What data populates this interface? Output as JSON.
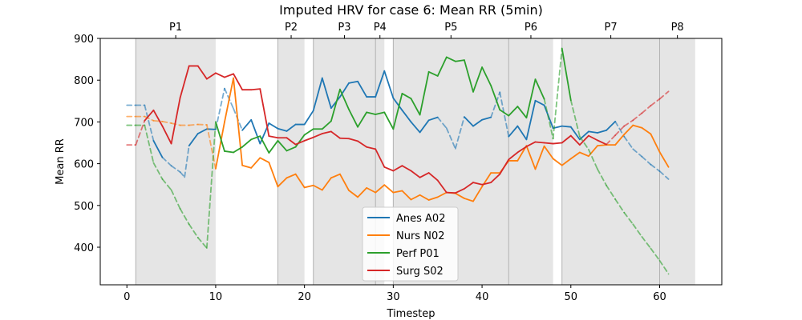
{
  "chart_data": {
    "type": "line",
    "title": "Imputed HRV for case 6: Mean RR (5min)",
    "xlabel": "Timestep",
    "ylabel": "Mean RR",
    "xlim": [
      -3,
      67
    ],
    "ylim": [
      310,
      900
    ],
    "xticks": [
      0,
      10,
      20,
      30,
      40,
      50,
      60
    ],
    "yticks": [
      400,
      500,
      600,
      700,
      800,
      900
    ],
    "grid": false,
    "legend_position": "lower-center",
    "phases": [
      {
        "label": "P1",
        "start": 1,
        "end": 10
      },
      {
        "label": "P2",
        "start": 17,
        "end": 20
      },
      {
        "label": "P3",
        "start": 21,
        "end": 28
      },
      {
        "label": "P4",
        "start": 28,
        "end": 29
      },
      {
        "label": "P5",
        "start": 30,
        "end": 43
      },
      {
        "label": "P6",
        "start": 43,
        "end": 48
      },
      {
        "label": "P7",
        "start": 49,
        "end": 60
      },
      {
        "label": "P8",
        "start": 60,
        "end": 64
      }
    ],
    "series": [
      {
        "name": "Anes A02",
        "color": "#1f77b4",
        "points": [
          [
            0,
            740,
            0
          ],
          [
            1,
            740,
            0
          ],
          [
            2,
            740,
            0
          ],
          [
            3,
            655,
            1
          ],
          [
            4,
            615,
            1
          ],
          [
            5,
            595,
            0
          ],
          [
            6,
            580,
            0
          ],
          [
            6.5,
            568,
            0
          ],
          [
            7,
            643,
            1
          ],
          [
            8,
            672,
            1
          ],
          [
            9,
            683,
            1
          ],
          [
            10,
            682,
            1
          ],
          [
            11,
            780,
            0
          ],
          [
            12,
            732,
            0
          ],
          [
            13,
            680,
            1
          ],
          [
            14,
            705,
            1
          ],
          [
            15,
            648,
            1
          ],
          [
            16,
            697,
            1
          ],
          [
            17,
            684,
            1
          ],
          [
            18,
            678,
            1
          ],
          [
            19,
            694,
            1
          ],
          [
            20,
            694,
            1
          ],
          [
            21,
            727,
            1
          ],
          [
            22,
            805,
            1
          ],
          [
            23,
            733,
            1
          ],
          [
            24,
            760,
            1
          ],
          [
            25,
            793,
            1
          ],
          [
            26,
            797,
            1
          ],
          [
            27,
            760,
            1
          ],
          [
            28,
            760,
            1
          ],
          [
            29,
            822,
            1
          ],
          [
            30,
            757,
            1
          ],
          [
            31,
            728,
            1
          ],
          [
            32,
            700,
            1
          ],
          [
            33,
            675,
            1
          ],
          [
            34,
            704,
            1
          ],
          [
            35,
            711,
            1
          ],
          [
            36,
            685,
            0
          ],
          [
            37,
            636,
            0
          ],
          [
            38,
            712,
            1
          ],
          [
            39,
            690,
            1
          ],
          [
            40,
            705,
            1
          ],
          [
            41,
            711,
            1
          ],
          [
            42,
            771,
            0
          ],
          [
            43,
            665,
            1
          ],
          [
            44,
            690,
            1
          ],
          [
            45,
            658,
            1
          ],
          [
            46,
            751,
            1
          ],
          [
            47,
            740,
            1
          ],
          [
            48,
            685,
            1
          ],
          [
            49,
            690,
            1
          ],
          [
            50,
            688,
            1
          ],
          [
            51,
            658,
            1
          ],
          [
            52,
            677,
            1
          ],
          [
            53,
            674,
            1
          ],
          [
            54,
            680,
            1
          ],
          [
            55,
            701,
            1
          ],
          [
            56,
            665,
            0
          ],
          [
            57,
            635,
            0
          ],
          [
            58,
            617,
            0
          ],
          [
            59,
            598,
            0
          ],
          [
            60,
            582,
            0
          ],
          [
            61,
            563,
            0
          ]
        ]
      },
      {
        "name": "Nurs N02",
        "color": "#ff7f0e",
        "points": [
          [
            0,
            713,
            0
          ],
          [
            1,
            713,
            0
          ],
          [
            2,
            713,
            0
          ],
          [
            3,
            703,
            0
          ],
          [
            4,
            701,
            0
          ],
          [
            5,
            697,
            0
          ],
          [
            6,
            692,
            0
          ],
          [
            7,
            692,
            0
          ],
          [
            8,
            694,
            0
          ],
          [
            9,
            693,
            0
          ],
          [
            10,
            588,
            1
          ],
          [
            11,
            700,
            1
          ],
          [
            12,
            805,
            1
          ],
          [
            13,
            596,
            1
          ],
          [
            14,
            590,
            1
          ],
          [
            15,
            614,
            1
          ],
          [
            16,
            603,
            1
          ],
          [
            17,
            545,
            1
          ],
          [
            18,
            566,
            1
          ],
          [
            19,
            575,
            1
          ],
          [
            20,
            543,
            1
          ],
          [
            21,
            548,
            1
          ],
          [
            22,
            537,
            1
          ],
          [
            23,
            566,
            1
          ],
          [
            24,
            575,
            1
          ],
          [
            25,
            536,
            1
          ],
          [
            26,
            520,
            1
          ],
          [
            27,
            542,
            1
          ],
          [
            28,
            531,
            1
          ],
          [
            29,
            549,
            1
          ],
          [
            30,
            531,
            1
          ],
          [
            31,
            535,
            1
          ],
          [
            32,
            514,
            1
          ],
          [
            33,
            525,
            1
          ],
          [
            34,
            513,
            1
          ],
          [
            35,
            520,
            1
          ],
          [
            36,
            531,
            1
          ],
          [
            37,
            529,
            1
          ],
          [
            38,
            517,
            1
          ],
          [
            39,
            510,
            1
          ],
          [
            40,
            545,
            1
          ],
          [
            41,
            578,
            1
          ],
          [
            42,
            578,
            1
          ],
          [
            43,
            607,
            1
          ],
          [
            44,
            607,
            1
          ],
          [
            45,
            643,
            1
          ],
          [
            46,
            587,
            1
          ],
          [
            47,
            642,
            1
          ],
          [
            48,
            612,
            1
          ],
          [
            49,
            596,
            1
          ],
          [
            50,
            612,
            1
          ],
          [
            51,
            627,
            1
          ],
          [
            52,
            618,
            1
          ],
          [
            53,
            643,
            1
          ],
          [
            54,
            645,
            1
          ],
          [
            55,
            645,
            1
          ],
          [
            56,
            670,
            1
          ],
          [
            57,
            692,
            1
          ],
          [
            58,
            686,
            1
          ],
          [
            59,
            671,
            1
          ],
          [
            60,
            628,
            1
          ],
          [
            61,
            592,
            1
          ]
        ]
      },
      {
        "name": "Perf P01",
        "color": "#2ca02c",
        "points": [
          [
            0,
            692,
            0
          ],
          [
            1,
            692,
            0
          ],
          [
            2,
            692,
            0
          ],
          [
            3,
            602,
            0
          ],
          [
            4,
            563,
            0
          ],
          [
            5,
            537,
            0
          ],
          [
            6,
            492,
            0
          ],
          [
            7,
            455,
            0
          ],
          [
            8,
            423,
            0
          ],
          [
            9,
            398,
            0
          ],
          [
            10,
            700,
            1
          ],
          [
            11,
            630,
            1
          ],
          [
            12,
            627,
            1
          ],
          [
            13,
            640,
            1
          ],
          [
            14,
            658,
            1
          ],
          [
            15,
            666,
            1
          ],
          [
            16,
            626,
            1
          ],
          [
            17,
            655,
            1
          ],
          [
            18,
            631,
            1
          ],
          [
            19,
            640,
            1
          ],
          [
            20,
            669,
            1
          ],
          [
            21,
            683,
            1
          ],
          [
            22,
            683,
            1
          ],
          [
            23,
            702,
            1
          ],
          [
            24,
            778,
            1
          ],
          [
            25,
            730,
            1
          ],
          [
            26,
            688,
            1
          ],
          [
            27,
            723,
            1
          ],
          [
            28,
            718,
            1
          ],
          [
            29,
            723,
            1
          ],
          [
            30,
            683,
            1
          ],
          [
            31,
            768,
            1
          ],
          [
            32,
            756,
            1
          ],
          [
            33,
            717,
            1
          ],
          [
            34,
            820,
            1
          ],
          [
            35,
            810,
            1
          ],
          [
            36,
            855,
            1
          ],
          [
            37,
            845,
            1
          ],
          [
            38,
            848,
            1
          ],
          [
            39,
            772,
            1
          ],
          [
            40,
            831,
            1
          ],
          [
            41,
            787,
            1
          ],
          [
            42,
            729,
            1
          ],
          [
            43,
            715,
            1
          ],
          [
            44,
            737,
            1
          ],
          [
            45,
            710,
            1
          ],
          [
            46,
            802,
            1
          ],
          [
            47,
            755,
            1
          ],
          [
            48,
            660,
            0
          ],
          [
            49,
            876,
            1
          ],
          [
            50,
            752,
            1
          ],
          [
            51,
            665,
            0
          ],
          [
            52,
            634,
            0
          ],
          [
            53,
            587,
            0
          ],
          [
            54,
            548,
            0
          ],
          [
            55,
            515,
            0
          ],
          [
            56,
            483,
            0
          ],
          [
            57,
            455,
            0
          ],
          [
            58,
            425,
            0
          ],
          [
            59,
            397,
            0
          ],
          [
            60,
            368,
            0
          ],
          [
            61,
            336,
            0
          ]
        ]
      },
      {
        "name": "Surg S02",
        "color": "#d62728",
        "points": [
          [
            0,
            645,
            0
          ],
          [
            1,
            645,
            0
          ],
          [
            2,
            703,
            1
          ],
          [
            3,
            728,
            1
          ],
          [
            4,
            690,
            1
          ],
          [
            5,
            648,
            1
          ],
          [
            6,
            758,
            1
          ],
          [
            7,
            834,
            1
          ],
          [
            8,
            834,
            1
          ],
          [
            9,
            803,
            1
          ],
          [
            10,
            817,
            1
          ],
          [
            11,
            807,
            1
          ],
          [
            12,
            815,
            1
          ],
          [
            13,
            777,
            1
          ],
          [
            14,
            777,
            1
          ],
          [
            15,
            779,
            1
          ],
          [
            16,
            666,
            1
          ],
          [
            17,
            662,
            1
          ],
          [
            18,
            662,
            1
          ],
          [
            19,
            646,
            1
          ],
          [
            20,
            655,
            1
          ],
          [
            21,
            663,
            1
          ],
          [
            22,
            672,
            1
          ],
          [
            23,
            677,
            1
          ],
          [
            24,
            661,
            1
          ],
          [
            25,
            660,
            1
          ],
          [
            26,
            654,
            1
          ],
          [
            27,
            640,
            1
          ],
          [
            28,
            635,
            1
          ],
          [
            29,
            592,
            1
          ],
          [
            30,
            583,
            1
          ],
          [
            31,
            595,
            1
          ],
          [
            32,
            583,
            1
          ],
          [
            33,
            567,
            1
          ],
          [
            34,
            578,
            1
          ],
          [
            35,
            560,
            1
          ],
          [
            36,
            531,
            1
          ],
          [
            37,
            530,
            1
          ],
          [
            38,
            540,
            1
          ],
          [
            39,
            555,
            1
          ],
          [
            40,
            550,
            1
          ],
          [
            41,
            555,
            1
          ],
          [
            42,
            575,
            1
          ],
          [
            43,
            610,
            1
          ],
          [
            44,
            627,
            1
          ],
          [
            45,
            641,
            1
          ],
          [
            46,
            652,
            1
          ],
          [
            47,
            650,
            1
          ],
          [
            48,
            648,
            1
          ],
          [
            49,
            650,
            1
          ],
          [
            50,
            667,
            1
          ],
          [
            51,
            645,
            1
          ],
          [
            52,
            667,
            1
          ],
          [
            53,
            656,
            1
          ],
          [
            54,
            646,
            1
          ],
          [
            55,
            668,
            0
          ],
          [
            56,
            690,
            0
          ],
          [
            57,
            704,
            0
          ],
          [
            58,
            721,
            0
          ],
          [
            59,
            739,
            0
          ],
          [
            60,
            755,
            0
          ],
          [
            61,
            773,
            0
          ]
        ]
      }
    ]
  }
}
